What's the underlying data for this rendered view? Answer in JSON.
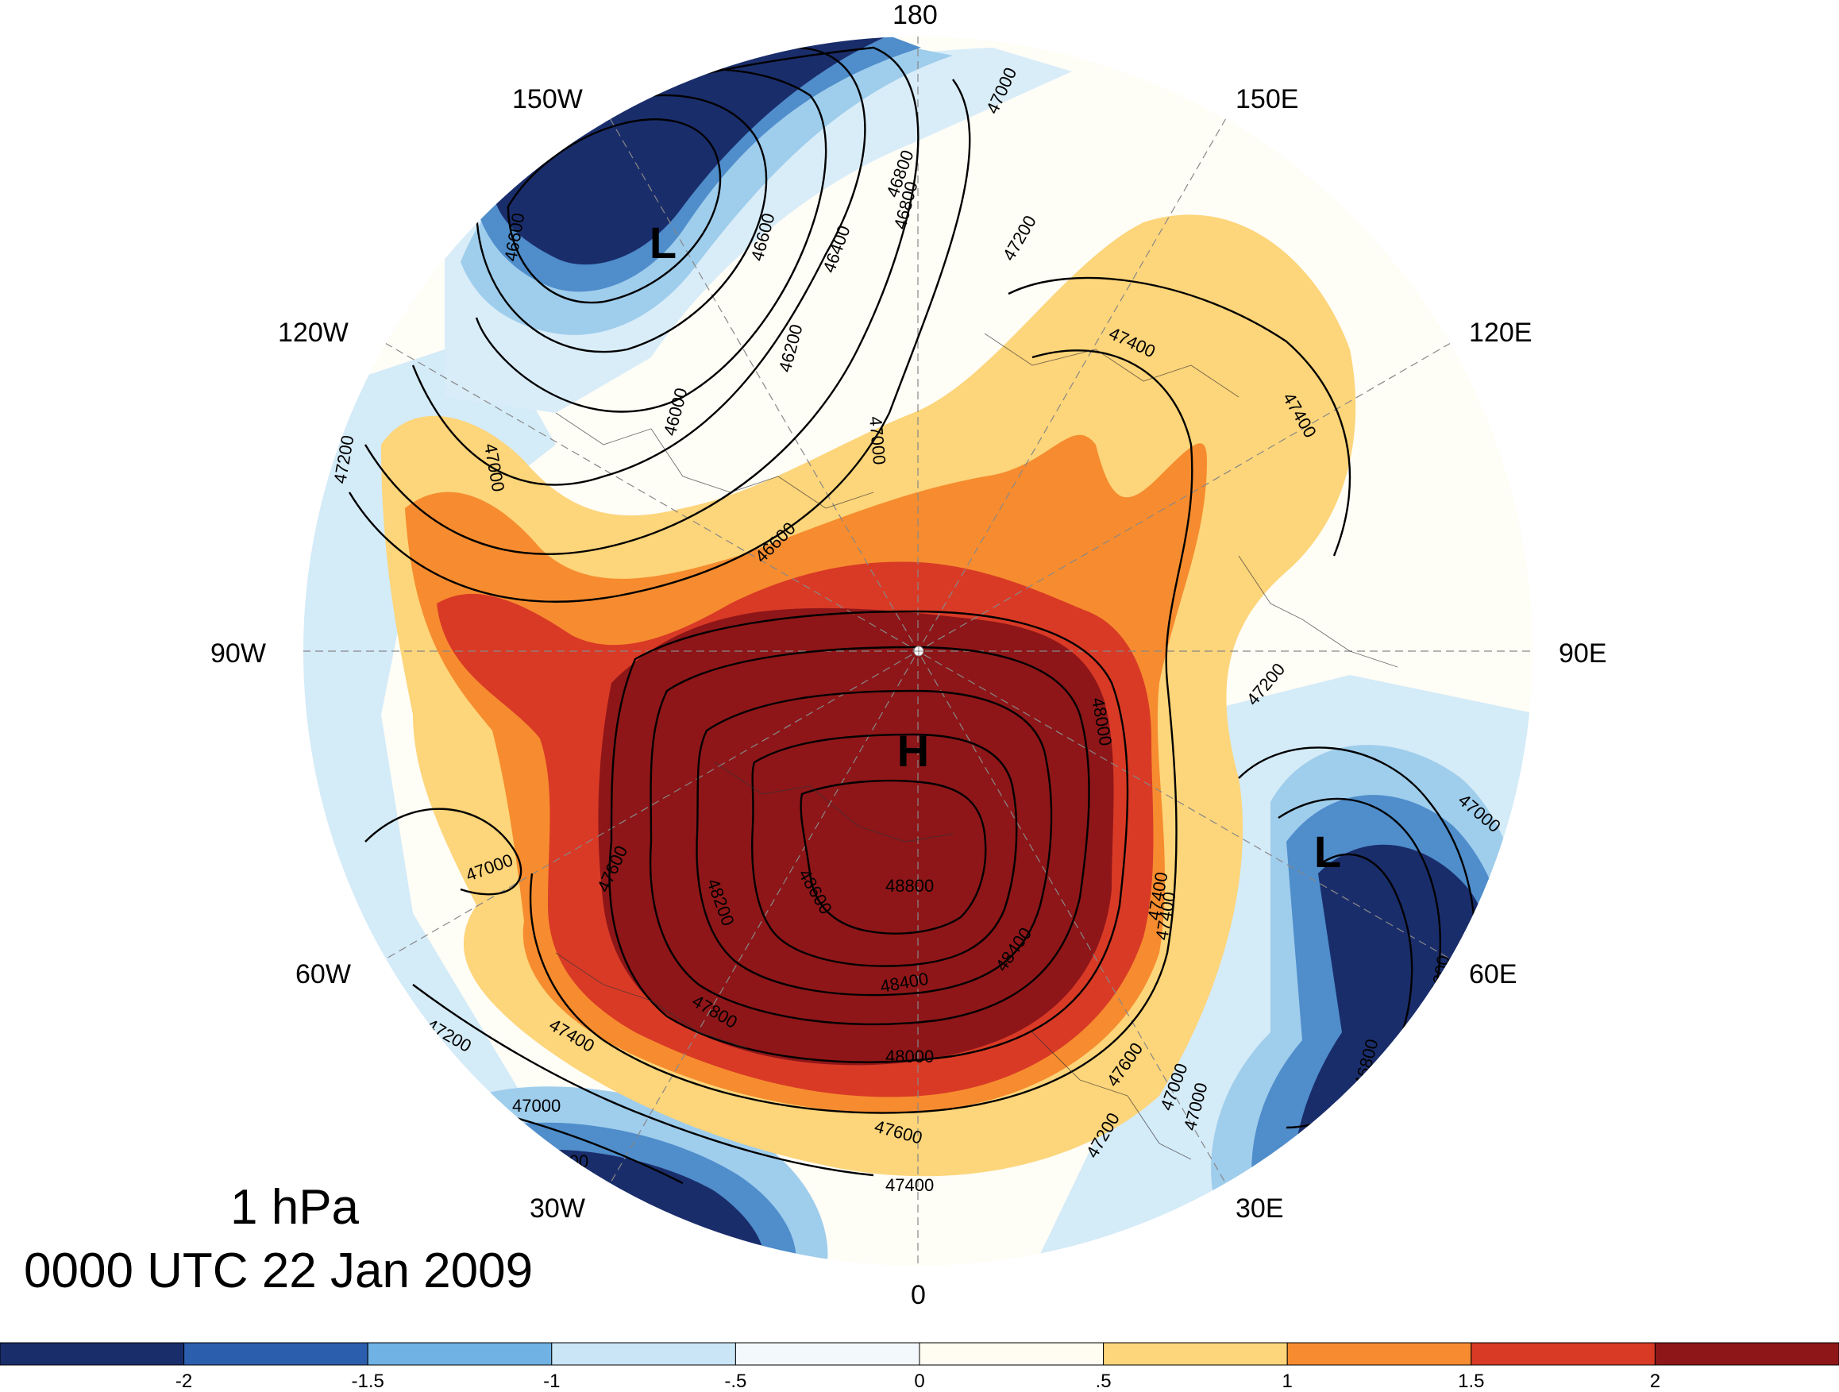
{
  "map": {
    "longitude_labels": [
      {
        "text": "180"
      },
      {
        "text": "150W"
      },
      {
        "text": "150E"
      },
      {
        "text": "120W"
      },
      {
        "text": "120E"
      },
      {
        "text": "90W"
      },
      {
        "text": "90E"
      },
      {
        "text": "60W"
      },
      {
        "text": "60E"
      },
      {
        "text": "30W"
      },
      {
        "text": "30E"
      },
      {
        "text": "0"
      }
    ],
    "centers": [
      {
        "label": "H",
        "kind": "high"
      },
      {
        "label": "L",
        "kind": "low"
      },
      {
        "label": "L",
        "kind": "low"
      }
    ],
    "contour_labels": [
      "46600",
      "46600",
      "46400",
      "46800",
      "47000",
      "46800",
      "46200",
      "46000",
      "47200",
      "47400",
      "47400",
      "47000",
      "46600",
      "47000",
      "47200",
      "47000",
      "47200",
      "48000",
      "47000",
      "47000",
      "47600",
      "48200",
      "48600",
      "48800",
      "48400",
      "48400",
      "47400",
      "47800",
      "47200",
      "47400",
      "48000",
      "47600",
      "47600",
      "47200",
      "47000",
      "47000",
      "47400",
      "46800",
      "46800",
      "47400",
      "46800"
    ]
  },
  "title": {
    "level": "1 hPa",
    "time": "0000 UTC 22 Jan 2009"
  },
  "colorbar": {
    "colors": [
      "#1a2d6b",
      "#2b5fae",
      "#6fb2e3",
      "#c9e5f6",
      "#f2f8fc",
      "#fffdf2",
      "#fdd57a",
      "#f68c2f",
      "#d93a26",
      "#8e1618"
    ],
    "tick_labels": [
      "-2",
      "-1.5",
      "-1",
      "-.5",
      "0",
      ".5",
      "1",
      "1.5",
      "2"
    ]
  }
}
